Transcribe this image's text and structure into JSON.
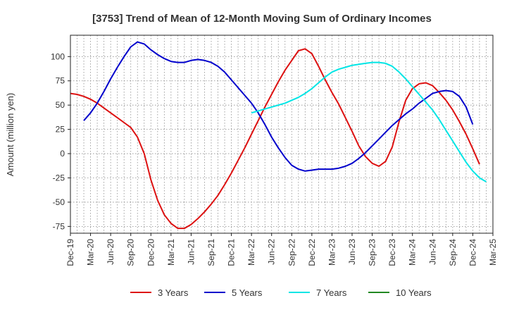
{
  "chart_data": {
    "type": "line",
    "title": "[3753]  Trend of Mean of 12-Month Moving Sum of Ordinary Incomes",
    "xlabel": "",
    "ylabel": "Amount (million yen)",
    "ylim": [
      -82,
      122
    ],
    "yticks": [
      -75,
      -50,
      -25,
      0,
      25,
      50,
      75,
      100
    ],
    "x_ticks": [
      "Dec-19",
      "Mar-20",
      "Jun-20",
      "Sep-20",
      "Dec-20",
      "Mar-21",
      "Jun-21",
      "Sep-21",
      "Dec-21",
      "Mar-22",
      "Jun-22",
      "Sep-22",
      "Dec-22",
      "Mar-23",
      "Jun-23",
      "Sep-23",
      "Dec-23",
      "Mar-24",
      "Jun-24",
      "Sep-24",
      "Dec-24",
      "Mar-25"
    ],
    "grid": true,
    "legend_position": "bottom",
    "series": [
      {
        "name": "3 Years",
        "color": "#dd1111",
        "start_index": 0,
        "values": [
          62,
          61,
          59,
          56,
          52,
          47,
          42,
          37,
          32,
          27,
          17,
          0,
          -27,
          -48,
          -63,
          -72,
          -77,
          -77,
          -73,
          -67,
          -60,
          -52,
          -43,
          -32,
          -20,
          -7,
          6,
          20,
          34,
          48,
          61,
          74,
          86,
          96,
          106,
          108,
          103,
          90,
          76,
          63,
          51,
          37,
          23,
          8,
          -3,
          -10,
          -13,
          -8,
          7,
          33,
          55,
          67,
          72,
          73,
          70,
          63,
          55,
          45,
          33,
          20,
          5,
          -11
        ]
      },
      {
        "name": "5 Years",
        "color": "#0000cc",
        "start_index": 2,
        "values": [
          34,
          42,
          52,
          64,
          77,
          89,
          100,
          110,
          115,
          113,
          107,
          102,
          98,
          95,
          94,
          94,
          96,
          97,
          96,
          94,
          90,
          84,
          76,
          68,
          60,
          52,
          42,
          30,
          17,
          6,
          -4,
          -12,
          -16,
          -18,
          -17,
          -16,
          -16,
          -16,
          -15,
          -13,
          -10,
          -5,
          1,
          8,
          15,
          22,
          29,
          35,
          41,
          46,
          52,
          57,
          62,
          64,
          65,
          64,
          59,
          48,
          30
        ]
      },
      {
        "name": "7 Years",
        "color": "#00e5e5",
        "start_index": 27,
        "values": [
          42,
          44,
          46,
          48,
          50,
          52,
          55,
          58,
          62,
          67,
          73,
          79,
          84,
          87,
          89,
          91,
          92,
          93,
          94,
          94,
          93,
          90,
          84,
          77,
          69,
          61,
          53,
          45,
          35,
          24,
          13,
          2,
          -9,
          -18,
          -25,
          -29
        ]
      },
      {
        "name": "10 Years",
        "color": "#228822",
        "start_index": 0,
        "values": []
      }
    ]
  }
}
